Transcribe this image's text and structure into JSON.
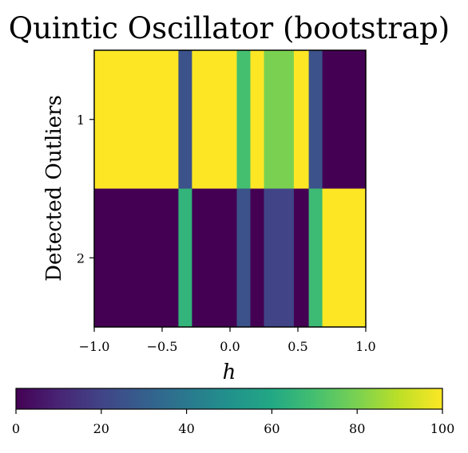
{
  "chart_data": {
    "type": "heatmap",
    "title": "Quintic Oscillator (bootstrap)",
    "xlabel": "h",
    "ylabel": "Detected Outliers",
    "xlim": [
      -1.0,
      1.0
    ],
    "x_ticks": [
      "−1.0",
      "−0.5",
      "0.0",
      "0.5",
      "1.0"
    ],
    "y_categories": [
      "1",
      "2"
    ],
    "color_scale": {
      "min": 0,
      "max": 100,
      "colormap": "viridis",
      "ticks": [
        "0",
        "20",
        "40",
        "60",
        "80",
        "100"
      ]
    },
    "x_bin_edges": [
      -1.0,
      -0.38,
      -0.28,
      0.05,
      0.15,
      0.25,
      0.47,
      0.58,
      0.68,
      1.0
    ],
    "values": [
      [
        100,
        25,
        100,
        70,
        100,
        80,
        100,
        25,
        0
      ],
      [
        0,
        65,
        0,
        25,
        0,
        20,
        0,
        68,
        100
      ]
    ],
    "grid": false,
    "colorbar_position": "bottom"
  }
}
